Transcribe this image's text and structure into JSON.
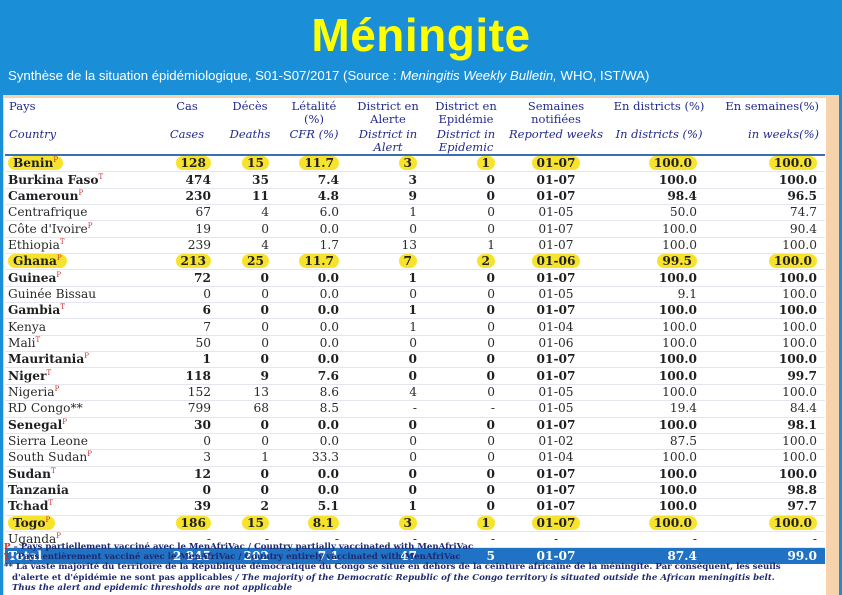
{
  "slide": {
    "title": "Méningite",
    "subtitle_prefix": "Synthèse de la situation épidémiologique, S01-S07/2017 (Source : ",
    "subtitle_italic": "Meningitis Weekly Bulletin,",
    "subtitle_suffix": " WHO, IST/WA)"
  },
  "table": {
    "headers_fr": [
      "Pays",
      "Cas",
      "Décès",
      "Létalité (%)",
      "District en Alerte",
      "District en Epidémie",
      "Semaines notifiées",
      "En districts (%)",
      "En semaines(%)"
    ],
    "headers_en": [
      "Country",
      "Cases",
      "Deaths",
      "CFR (%)",
      "District in Alert",
      "District in Epidemic",
      "Reported weeks",
      "In districts (%)",
      "in weeks(%)"
    ],
    "rows": [
      {
        "country": "Benin",
        "tag": "P",
        "bold": true,
        "highlight": true,
        "cases": "128",
        "deaths": "15",
        "cfr": "11.7",
        "alert": "3",
        "epidemic": "1",
        "weeks": "01-07",
        "dist_pct": "100.0",
        "week_pct": "100.0"
      },
      {
        "country": "Burkina Faso",
        "tag": "T",
        "bold": true,
        "highlight": false,
        "cases": "474",
        "deaths": "35",
        "cfr": "7.4",
        "alert": "3",
        "epidemic": "0",
        "weeks": "01-07",
        "dist_pct": "100.0",
        "week_pct": "100.0"
      },
      {
        "country": "Cameroun",
        "tag": "P",
        "bold": true,
        "highlight": false,
        "cases": "230",
        "deaths": "11",
        "cfr": "4.8",
        "alert": "9",
        "epidemic": "0",
        "weeks": "01-07",
        "dist_pct": "98.4",
        "week_pct": "96.5"
      },
      {
        "country": "Centrafrique",
        "tag": "",
        "bold": false,
        "highlight": false,
        "cases": "67",
        "deaths": "4",
        "cfr": "6.0",
        "alert": "1",
        "epidemic": "0",
        "weeks": "01-05",
        "dist_pct": "50.0",
        "week_pct": "74.7"
      },
      {
        "country": "Côte d'Ivoire",
        "tag": "P",
        "bold": false,
        "highlight": false,
        "cases": "19",
        "deaths": "0",
        "cfr": "0.0",
        "alert": "0",
        "epidemic": "0",
        "weeks": "01-07",
        "dist_pct": "100.0",
        "week_pct": "90.4"
      },
      {
        "country": "Ethiopia",
        "tag": "T",
        "bold": false,
        "highlight": false,
        "cases": "239",
        "deaths": "4",
        "cfr": "1.7",
        "alert": "13",
        "epidemic": "1",
        "weeks": "01-07",
        "dist_pct": "100.0",
        "week_pct": "100.0"
      },
      {
        "country": "Ghana",
        "tag": "P",
        "bold": true,
        "highlight": true,
        "cases": "213",
        "deaths": "25",
        "cfr": "11.7",
        "alert": "7",
        "epidemic": "2",
        "weeks": "01-06",
        "dist_pct": "99.5",
        "week_pct": "100.0"
      },
      {
        "country": "Guinea",
        "tag": "P",
        "bold": true,
        "highlight": false,
        "cases": "72",
        "deaths": "0",
        "cfr": "0.0",
        "alert": "1",
        "epidemic": "0",
        "weeks": "01-07",
        "dist_pct": "100.0",
        "week_pct": "100.0"
      },
      {
        "country": "Guinée Bissau",
        "tag": "",
        "bold": false,
        "highlight": false,
        "cases": "0",
        "deaths": "0",
        "cfr": "0.0",
        "alert": "0",
        "epidemic": "0",
        "weeks": "01-05",
        "dist_pct": "9.1",
        "week_pct": "100.0"
      },
      {
        "country": "Gambia",
        "tag": "T",
        "bold": true,
        "highlight": false,
        "cases": "6",
        "deaths": "0",
        "cfr": "0.0",
        "alert": "1",
        "epidemic": "0",
        "weeks": "01-07",
        "dist_pct": "100.0",
        "week_pct": "100.0"
      },
      {
        "country": "Kenya",
        "tag": "",
        "bold": false,
        "highlight": false,
        "cases": "7",
        "deaths": "0",
        "cfr": "0.0",
        "alert": "1",
        "epidemic": "0",
        "weeks": "01-04",
        "dist_pct": "100.0",
        "week_pct": "100.0"
      },
      {
        "country": "Mali",
        "tag": "T",
        "bold": false,
        "highlight": false,
        "cases": "50",
        "deaths": "0",
        "cfr": "0.0",
        "alert": "0",
        "epidemic": "0",
        "weeks": "01-06",
        "dist_pct": "100.0",
        "week_pct": "100.0"
      },
      {
        "country": "Mauritania",
        "tag": "P",
        "bold": true,
        "highlight": false,
        "cases": "1",
        "deaths": "0",
        "cfr": "0.0",
        "alert": "0",
        "epidemic": "0",
        "weeks": "01-07",
        "dist_pct": "100.0",
        "week_pct": "100.0"
      },
      {
        "country": "Niger",
        "tag": "T",
        "bold": true,
        "highlight": false,
        "cases": "118",
        "deaths": "9",
        "cfr": "7.6",
        "alert": "0",
        "epidemic": "0",
        "weeks": "01-07",
        "dist_pct": "100.0",
        "week_pct": "99.7"
      },
      {
        "country": "Nigeria",
        "tag": "P",
        "bold": false,
        "highlight": false,
        "cases": "152",
        "deaths": "13",
        "cfr": "8.6",
        "alert": "4",
        "epidemic": "0",
        "weeks": "01-05",
        "dist_pct": "100.0",
        "week_pct": "100.0"
      },
      {
        "country": "RD Congo**",
        "tag": "",
        "bold": false,
        "highlight": false,
        "cases": "799",
        "deaths": "68",
        "cfr": "8.5",
        "alert": "-",
        "epidemic": "-",
        "weeks": "01-05",
        "dist_pct": "19.4",
        "week_pct": "84.4"
      },
      {
        "country": "Senegal",
        "tag": "P",
        "bold": true,
        "highlight": false,
        "cases": "30",
        "deaths": "0",
        "cfr": "0.0",
        "alert": "0",
        "epidemic": "0",
        "weeks": "01-07",
        "dist_pct": "100.0",
        "week_pct": "98.1"
      },
      {
        "country": "Sierra Leone",
        "tag": "",
        "bold": false,
        "highlight": false,
        "cases": "0",
        "deaths": "0",
        "cfr": "0.0",
        "alert": "0",
        "epidemic": "0",
        "weeks": "01-02",
        "dist_pct": "87.5",
        "week_pct": "100.0"
      },
      {
        "country": "South Sudan",
        "tag": "P",
        "bold": false,
        "highlight": false,
        "cases": "3",
        "deaths": "1",
        "cfr": "33.3",
        "alert": "0",
        "epidemic": "0",
        "weeks": "01-04",
        "dist_pct": "100.0",
        "week_pct": "100.0"
      },
      {
        "country": "Sudan",
        "tag": "T",
        "bold": true,
        "highlight": false,
        "cases": "12",
        "deaths": "0",
        "cfr": "0.0",
        "alert": "0",
        "epidemic": "0",
        "weeks": "01-07",
        "dist_pct": "100.0",
        "week_pct": "100.0"
      },
      {
        "country": "Tanzania",
        "tag": "",
        "bold": true,
        "highlight": false,
        "cases": "0",
        "deaths": "0",
        "cfr": "0.0",
        "alert": "0",
        "epidemic": "0",
        "weeks": "01-07",
        "dist_pct": "100.0",
        "week_pct": "98.8"
      },
      {
        "country": "Tchad",
        "tag": "T",
        "bold": true,
        "highlight": false,
        "cases": "39",
        "deaths": "2",
        "cfr": "5.1",
        "alert": "1",
        "epidemic": "0",
        "weeks": "01-07",
        "dist_pct": "100.0",
        "week_pct": "97.7"
      },
      {
        "country": "Togo",
        "tag": "P",
        "bold": true,
        "highlight": true,
        "cases": "186",
        "deaths": "15",
        "cfr": "8.1",
        "alert": "3",
        "epidemic": "1",
        "weeks": "01-07",
        "dist_pct": "100.0",
        "week_pct": "100.0"
      },
      {
        "country": "Uganda",
        "tag": "P",
        "bold": false,
        "highlight": false,
        "cases": "-",
        "deaths": "-",
        "cfr": "-",
        "alert": "-",
        "epidemic": "-",
        "weeks": "-",
        "dist_pct": "-",
        "week_pct": "-"
      }
    ],
    "total": {
      "country": "Total",
      "cases": "2 845",
      "deaths": "202",
      "cfr": "7.1",
      "alert": "47",
      "epidemic": "5",
      "weeks": "01-07",
      "dist_pct": "87.4",
      "week_pct": "99.0"
    }
  },
  "notes": {
    "p_label": "P",
    "p_text": " – Pays partiellement vacciné avec le MenAfriVac / Country partially  vaccinated with MenAfriVac",
    "t_label": "T",
    "t_text": "– Pays entièrement vacciné avec le MenAfriVac / Country entirely  vaccinated with MenAfriVac",
    "dd_label": "**",
    "dd_text": " La vaste majorité du territoire de la République démocratique du Congo se situe en dehors de la ceinture africaine de la méningite. Par conséquent, les seuils",
    "dd_line2_normal": "d'alerte et d'épidémie ne sont pas applicables ",
    "dd_line2_italic": "/ The majority of the Democratic Republic of the Congo territory is situated outside the African meningitis belt.",
    "dd_line3_italic": "Thus the alert and epidemic thresholds are not applicable"
  }
}
